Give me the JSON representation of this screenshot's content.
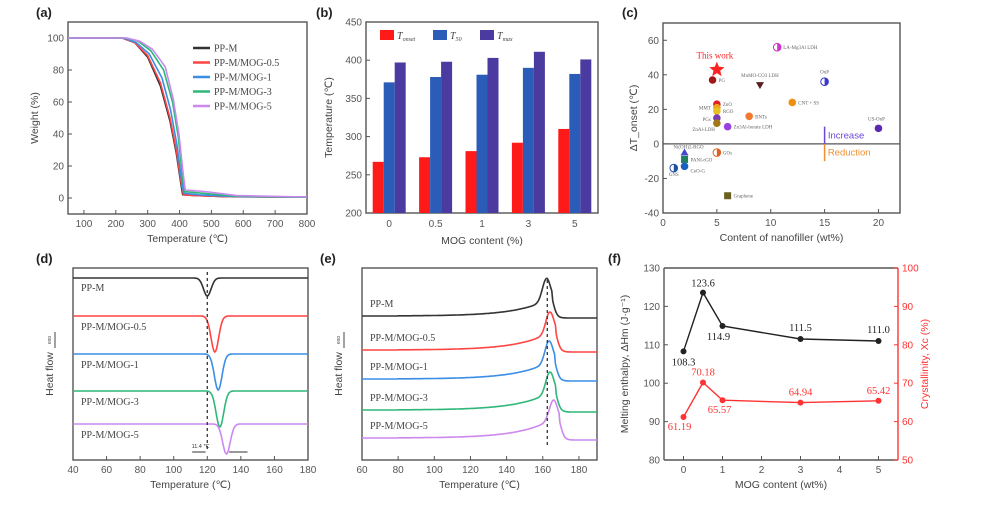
{
  "chart_data": [
    {
      "panel": "(a)",
      "type": "line",
      "xlabel": "Temperature (℃)",
      "ylabel": "Weight (%)",
      "xlim": [
        50,
        800
      ],
      "ylim": [
        -10,
        110
      ],
      "xticks": [
        100,
        200,
        300,
        400,
        500,
        600,
        700,
        800
      ],
      "yticks": [
        0,
        20,
        40,
        60,
        80,
        100
      ],
      "legend_position": "top-right",
      "series": [
        {
          "name": "PP-M",
          "color": "#333333",
          "x": [
            50,
            220,
            260,
            300,
            340,
            370,
            390,
            405,
            410,
            450,
            550,
            800
          ],
          "y": [
            100,
            100,
            97,
            88,
            70,
            48,
            28,
            8,
            2,
            1.5,
            0.8,
            0.5
          ]
        },
        {
          "name": "PP-M/MOG-0.5",
          "color": "#ff4444",
          "x": [
            50,
            220,
            260,
            300,
            340,
            370,
            390,
            405,
            412,
            450,
            550,
            800
          ],
          "y": [
            100,
            100,
            97,
            89,
            72,
            50,
            30,
            10,
            2,
            1.5,
            0.8,
            0.5
          ]
        },
        {
          "name": "PP-M/MOG-1",
          "color": "#3a8ee6",
          "x": [
            50,
            225,
            265,
            305,
            345,
            372,
            392,
            407,
            413,
            460,
            560,
            800
          ],
          "y": [
            100,
            100,
            97,
            90,
            75,
            55,
            33,
            10,
            3,
            2,
            1,
            0.5
          ]
        },
        {
          "name": "PP-M/MOG-3",
          "color": "#2fb77a",
          "x": [
            50,
            230,
            270,
            310,
            350,
            378,
            396,
            410,
            416,
            470,
            570,
            800
          ],
          "y": [
            100,
            100,
            98,
            92,
            80,
            60,
            38,
            12,
            4,
            3,
            1.2,
            0.5
          ]
        },
        {
          "name": "PP-M/MOG-5",
          "color": "#cc88ee",
          "x": [
            50,
            235,
            275,
            315,
            355,
            380,
            398,
            412,
            418,
            480,
            580,
            800
          ],
          "y": [
            100,
            100,
            98,
            93,
            82,
            62,
            40,
            14,
            5,
            4,
            1.5,
            0.6
          ]
        }
      ]
    },
    {
      "panel": "(b)",
      "type": "bar",
      "xlabel": "MOG content (%)",
      "ylabel": "Temperature (℃)",
      "categories": [
        "0",
        "0.5",
        "1",
        "3",
        "5"
      ],
      "ylim": [
        200,
        450
      ],
      "yticks": [
        200,
        250,
        300,
        350,
        400,
        450
      ],
      "legend_position": "top",
      "series": [
        {
          "name": "T_onset",
          "color": "#ff1a1a",
          "values": [
            267,
            273,
            281,
            292,
            310
          ]
        },
        {
          "name": "T_50",
          "color": "#2b5db8",
          "values": [
            371,
            378,
            381,
            390,
            382
          ]
        },
        {
          "name": "T_max",
          "color": "#4b3aa0",
          "values": [
            397,
            398,
            403,
            411,
            401
          ]
        }
      ]
    },
    {
      "panel": "(c)",
      "type": "scatter",
      "xlabel": "Content of nanofiller (wt%)",
      "ylabel": "ΔT_onset (℃)",
      "xlim": [
        0,
        22
      ],
      "ylim": [
        -40,
        70
      ],
      "xticks": [
        0,
        5,
        10,
        15,
        20
      ],
      "yticks": [
        -40,
        -20,
        0,
        20,
        40,
        60
      ],
      "points": [
        {
          "label": "This work",
          "x": 5,
          "y": 43,
          "color": "#ff2222",
          "marker": "star"
        },
        {
          "label": "PG",
          "x": 4.6,
          "y": 37,
          "color": "#a01818",
          "marker": "circle"
        },
        {
          "label": "LA-Mg3Al LDH",
          "x": 10.6,
          "y": 56,
          "color": "#cc33cc",
          "marker": "half"
        },
        {
          "label": "MnMO-CO3 LDH",
          "x": 9,
          "y": 34,
          "color": "#5a2020",
          "marker": "tri-down"
        },
        {
          "label": "OnP",
          "x": 15,
          "y": 36,
          "color": "#3a3acc",
          "marker": "half"
        },
        {
          "label": "ZnO",
          "x": 5,
          "y": 23,
          "color": "#e02020",
          "marker": "circle"
        },
        {
          "label": "MMT",
          "x": 5,
          "y": 21,
          "color": "#f0a020",
          "marker": "circle"
        },
        {
          "label": "RGO",
          "x": 5,
          "y": 19,
          "color": "#e8c020",
          "marker": "circle"
        },
        {
          "label": "PGs",
          "x": 5,
          "y": 15,
          "color": "#7a3ab0",
          "marker": "circle"
        },
        {
          "label": "ZnAl-LDH",
          "x": 5,
          "y": 12,
          "color": "#a07818",
          "marker": "circle"
        },
        {
          "label": "CNT + SS",
          "x": 12,
          "y": 24,
          "color": "#f09010",
          "marker": "circle"
        },
        {
          "label": "BNTs",
          "x": 8,
          "y": 16,
          "color": "#f07830",
          "marker": "circle"
        },
        {
          "label": "Zn3Al-borate LDH",
          "x": 6,
          "y": 10,
          "color": "#9a40e0",
          "marker": "circle"
        },
        {
          "label": "US-OnP",
          "x": 20,
          "y": 9,
          "color": "#5a2ab0",
          "marker": "circle"
        },
        {
          "label": "GOs",
          "x": 5,
          "y": -5,
          "color": "#e06020",
          "marker": "half"
        },
        {
          "label": "Ni(OH)2-RGO",
          "x": 2,
          "y": -5,
          "color": "#4848c8",
          "marker": "triangle"
        },
        {
          "label": "PANI-rGO",
          "x": 2,
          "y": -9,
          "color": "#208060",
          "marker": "square"
        },
        {
          "label": "CeO-G",
          "x": 2,
          "y": -13,
          "color": "#1a60c0",
          "marker": "circle"
        },
        {
          "label": "GNS",
          "x": 1,
          "y": -14,
          "color": "#2050a0",
          "marker": "half"
        },
        {
          "label": "Graphene",
          "x": 6,
          "y": -30,
          "color": "#6a6020",
          "marker": "square"
        }
      ],
      "annotations": [
        {
          "text": "Increase",
          "x": 15.3,
          "y": 5,
          "color": "#6a48d8"
        },
        {
          "text": "Reduction",
          "x": 15.3,
          "y": -5,
          "color": "#f09030"
        }
      ],
      "reference_line_y": 0
    },
    {
      "panel": "(d)",
      "type": "line",
      "xlabel": "Temperature (℃)",
      "ylabel": "Heat flow",
      "ylabel_note": "exo",
      "xlim": [
        40,
        180
      ],
      "xticks": [
        40,
        60,
        80,
        100,
        120,
        140,
        160,
        180
      ],
      "annotation": "11.4 ℃",
      "series": [
        {
          "name": "PP-M",
          "color": "#333333",
          "peak_x": 120,
          "peak_type": "min"
        },
        {
          "name": "PP-M/MOG-0.5",
          "color": "#ff4444",
          "peak_x": 124.5,
          "peak_type": "min"
        },
        {
          "name": "PP-M/MOG-1",
          "color": "#3a8ee6",
          "peak_x": 126.5,
          "peak_type": "min"
        },
        {
          "name": "PP-M/MOG-3",
          "color": "#2fb77a",
          "peak_x": 127.5,
          "peak_type": "min"
        },
        {
          "name": "PP-M/MOG-5",
          "color": "#cc88ee",
          "peak_x": 131.4,
          "peak_type": "min"
        }
      ]
    },
    {
      "panel": "(e)",
      "type": "line",
      "xlabel": "Temperature (℃)",
      "ylabel": "Heat flow",
      "ylabel_note": "exo",
      "xlim": [
        60,
        190
      ],
      "xticks": [
        60,
        80,
        100,
        120,
        140,
        160,
        180
      ],
      "series": [
        {
          "name": "PP-M",
          "color": "#333333",
          "peak_x": 162,
          "peak_type": "max"
        },
        {
          "name": "PP-M/MOG-0.5",
          "color": "#ff4444",
          "peak_x": 164,
          "peak_type": "max"
        },
        {
          "name": "PP-M/MOG-1",
          "color": "#3a8ee6",
          "peak_x": 163.5,
          "peak_type": "max"
        },
        {
          "name": "PP-M/MOG-3",
          "color": "#2fb77a",
          "peak_x": 164,
          "peak_type": "max"
        },
        {
          "name": "PP-M/MOG-5",
          "color": "#cc88ee",
          "peak_x": 166,
          "peak_type": "max"
        }
      ]
    },
    {
      "panel": "(f)",
      "type": "line",
      "xlabel": "MOG content (wt%)",
      "ylabel": "Melting enthalpy, ΔHm (J·g⁻¹)",
      "ylabel_right": "Crystallinity, Xc (%)",
      "xlim": [
        -0.5,
        5.5
      ],
      "xticks": [
        0,
        1,
        2,
        3,
        4,
        5
      ],
      "ylim": [
        80,
        130
      ],
      "yticks": [
        80,
        90,
        100,
        110,
        120,
        130
      ],
      "ylim_right": [
        50,
        100
      ],
      "yticks_right": [
        50,
        60,
        70,
        80,
        90,
        100
      ],
      "series": [
        {
          "name": "Melting enthalpy",
          "axis": "left",
          "color": "#222222",
          "x": [
            0,
            0.5,
            1,
            3,
            5
          ],
          "values": [
            108.3,
            123.6,
            114.9,
            111.5,
            111.0
          ],
          "labels": [
            "108.3",
            "123.6",
            "114.9",
            "111.5",
            "111.0"
          ]
        },
        {
          "name": "Crystallinity",
          "axis": "right",
          "color": "#ff3333",
          "x": [
            0,
            0.5,
            1,
            3,
            5
          ],
          "values": [
            61.19,
            70.18,
            65.57,
            64.94,
            65.42
          ],
          "labels": [
            "61.19",
            "70.18",
            "65.57",
            "64.94",
            "65.42"
          ]
        }
      ]
    }
  ]
}
